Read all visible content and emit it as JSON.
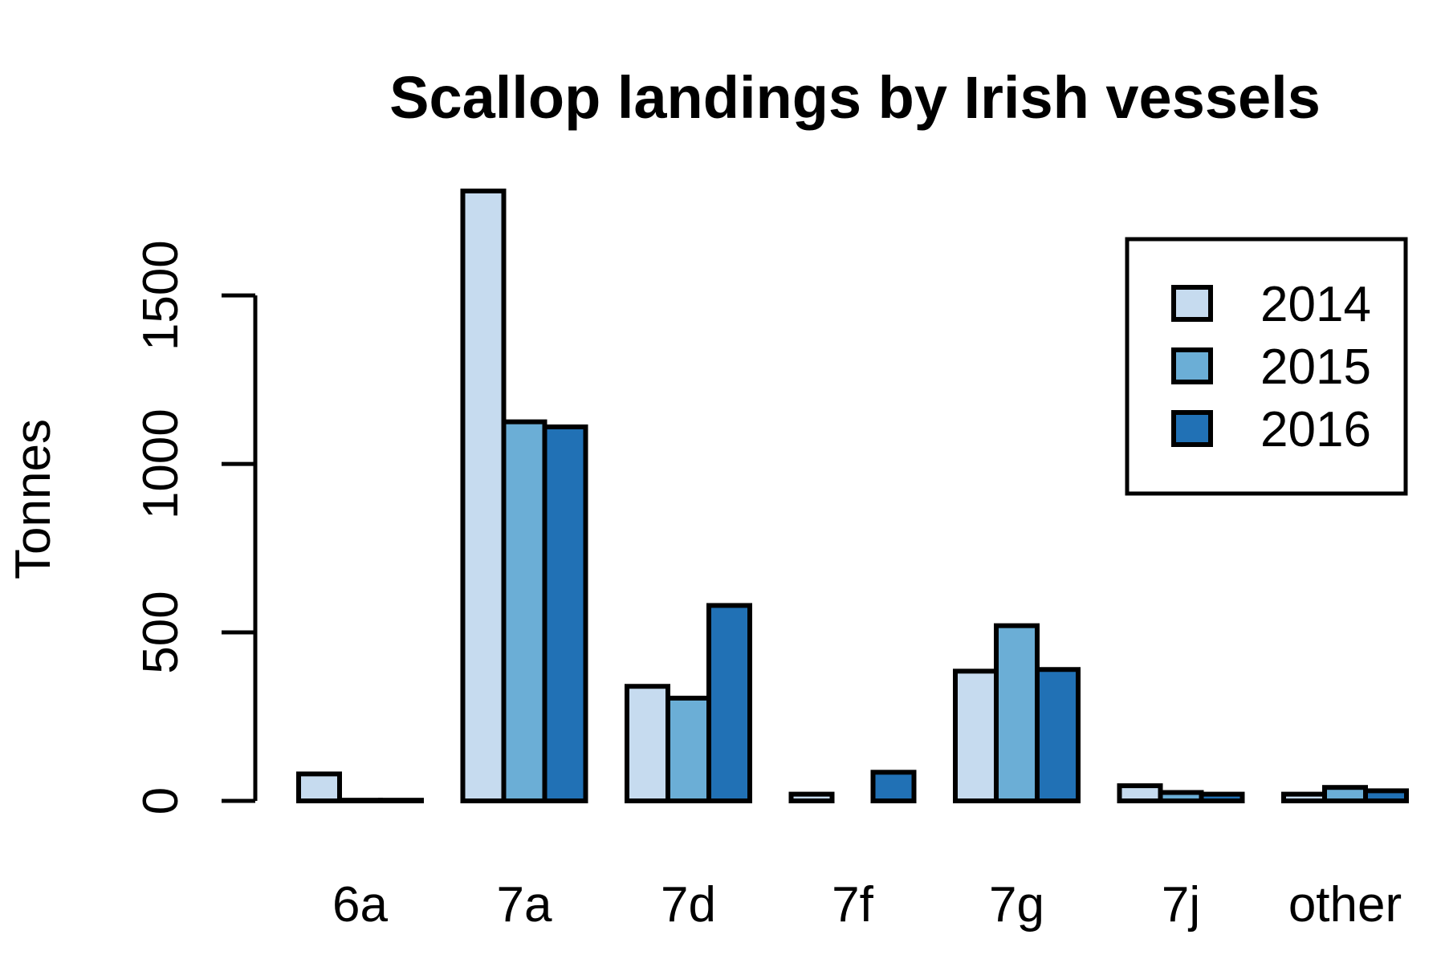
{
  "colors": {
    "2014": "#c6dbef",
    "2015": "#6baed6",
    "2016": "#2171b5"
  },
  "chart_data": {
    "type": "bar",
    "title": "Scallop landings by Irish vessels",
    "xlabel": "",
    "ylabel": "Tonnes",
    "categories": [
      "6a",
      "7a",
      "7d",
      "7f",
      "7g",
      "7j",
      "other"
    ],
    "series": [
      {
        "name": "2014",
        "values": [
          80,
          1810,
          340,
          20,
          385,
          45,
          20
        ]
      },
      {
        "name": "2015",
        "values": [
          2,
          1125,
          305,
          0,
          520,
          25,
          40
        ]
      },
      {
        "name": "2016",
        "values": [
          2,
          1110,
          580,
          85,
          390,
          20,
          30
        ]
      }
    ],
    "yticks": [
      0,
      500,
      1000,
      1500
    ],
    "ylim": [
      0,
      1810
    ],
    "grid": false,
    "legend_position": "top-right"
  }
}
